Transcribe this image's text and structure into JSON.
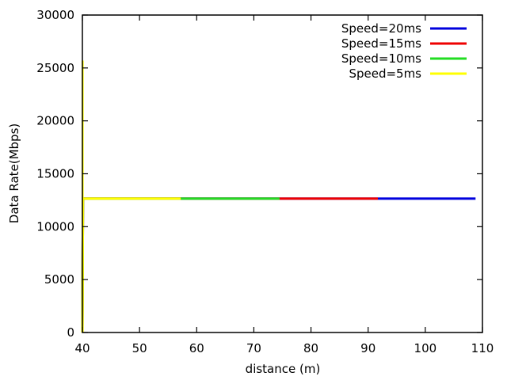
{
  "chart_data": {
    "type": "line",
    "title": "",
    "xlabel": "distance (m)",
    "ylabel": "Data Rate(Mbps)",
    "xlim": [
      40,
      110
    ],
    "ylim": [
      0,
      30000
    ],
    "xticks": [
      40,
      50,
      60,
      70,
      80,
      90,
      100,
      110
    ],
    "yticks": [
      0,
      5000,
      10000,
      15000,
      20000,
      25000,
      30000
    ],
    "grid": false,
    "legend_position": "top-right",
    "series": [
      {
        "name": "Speed=20ms",
        "color": "#0000dd",
        "x": [
          40,
          40.1,
          108.8
        ],
        "y": [
          0,
          12650,
          12650
        ]
      },
      {
        "name": "Speed=15ms",
        "color": "#ee0000",
        "x": [
          40,
          40.1,
          91.7
        ],
        "y": [
          0,
          12650,
          12650
        ]
      },
      {
        "name": "Speed=10ms",
        "color": "#22dd22",
        "x": [
          40,
          40.1,
          74.5
        ],
        "y": [
          0,
          12650,
          12650
        ]
      },
      {
        "name": "Speed=5ms",
        "color": "#ffff00",
        "x": [
          40,
          40.1,
          57.2
        ],
        "y": [
          0,
          12650,
          12650
        ]
      }
    ]
  }
}
